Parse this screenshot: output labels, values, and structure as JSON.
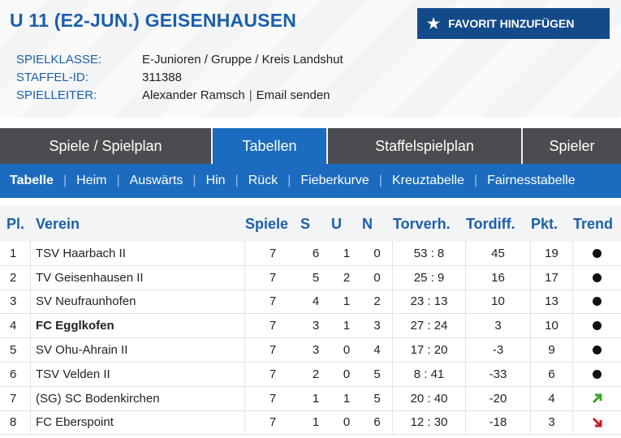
{
  "header": {
    "title": "U 11 (E2-JUN.) GEISENHAUSEN",
    "favorite_label": "FAVORIT HINZUFÜGEN",
    "info": {
      "spielklasse_key": "SPIELKLASSE:",
      "spielklasse_val": "E-Junioren / Gruppe / Kreis Landshut",
      "staffel_key": "STAFFEL-ID:",
      "staffel_val": "311388",
      "spielleiter_key": "SPIELLEITER:",
      "spielleiter_name": "Alexander Ramsch",
      "spielleiter_sep": "|",
      "email_label": "Email senden"
    }
  },
  "tabs": [
    {
      "label": "Spiele / Spielplan"
    },
    {
      "label": "Tabellen"
    },
    {
      "label": "Staffelspielplan"
    },
    {
      "label": "Spieler"
    }
  ],
  "subnav": [
    {
      "label": "Tabelle"
    },
    {
      "label": "Heim"
    },
    {
      "label": "Auswärts"
    },
    {
      "label": "Hin"
    },
    {
      "label": "Rück"
    },
    {
      "label": "Fieberkurve"
    },
    {
      "label": "Kreuztabelle"
    },
    {
      "label": "Fairnesstabelle"
    }
  ],
  "subnav_separator": "|",
  "table": {
    "headers": {
      "pl": "Pl.",
      "verein": "Verein",
      "spiele": "Spiele",
      "s": "S",
      "u": "U",
      "n": "N",
      "torv": "Torverh.",
      "diff": "Tordiff.",
      "pkt": "Pkt.",
      "trend": "Trend"
    },
    "rows": [
      {
        "pl": "1",
        "verein": "TSV Haarbach II",
        "spiele": "7",
        "s": "6",
        "u": "1",
        "n": "0",
        "torv": "53 : 8",
        "diff": "45",
        "pkt": "19",
        "trend": "dot-icon"
      },
      {
        "pl": "2",
        "verein": "TV Geisenhausen II",
        "spiele": "7",
        "s": "5",
        "u": "2",
        "n": "0",
        "torv": "25 : 9",
        "diff": "16",
        "pkt": "17",
        "trend": "dot-icon"
      },
      {
        "pl": "3",
        "verein": "SV Neufraunhofen",
        "spiele": "7",
        "s": "4",
        "u": "1",
        "n": "2",
        "torv": "23 : 13",
        "diff": "10",
        "pkt": "13",
        "trend": "dot-icon"
      },
      {
        "pl": "4",
        "verein": "FC Egglkofen",
        "spiele": "7",
        "s": "3",
        "u": "1",
        "n": "3",
        "torv": "27 : 24",
        "diff": "3",
        "pkt": "10",
        "trend": "dot-icon"
      },
      {
        "pl": "5",
        "verein": "SV Ohu-Ahrain II",
        "spiele": "7",
        "s": "3",
        "u": "0",
        "n": "4",
        "torv": "17 : 20",
        "diff": "-3",
        "pkt": "9",
        "trend": "dot-icon"
      },
      {
        "pl": "6",
        "verein": "TSV Velden II",
        "spiele": "7",
        "s": "2",
        "u": "0",
        "n": "5",
        "torv": "8 : 41",
        "diff": "-33",
        "pkt": "6",
        "trend": "dot-icon"
      },
      {
        "pl": "7",
        "verein": "(SG) SC Bodenkirchen",
        "spiele": "7",
        "s": "1",
        "u": "1",
        "n": "5",
        "torv": "20 : 40",
        "diff": "-20",
        "pkt": "4",
        "trend": "arrow-up-icon"
      },
      {
        "pl": "8",
        "verein": "FC Eberspoint",
        "spiele": "7",
        "s": "1",
        "u": "0",
        "n": "6",
        "torv": "12 : 30",
        "diff": "-18",
        "pkt": "3",
        "trend": "arrow-down-icon"
      }
    ]
  },
  "colors": {
    "brand_blue": "#1b6bbf",
    "title_blue": "#1b5faa",
    "button_navy": "#134a8a",
    "tab_dark": "#4a4c4f",
    "trend_up": "#3aa51f",
    "trend_down": "#c41e24"
  }
}
